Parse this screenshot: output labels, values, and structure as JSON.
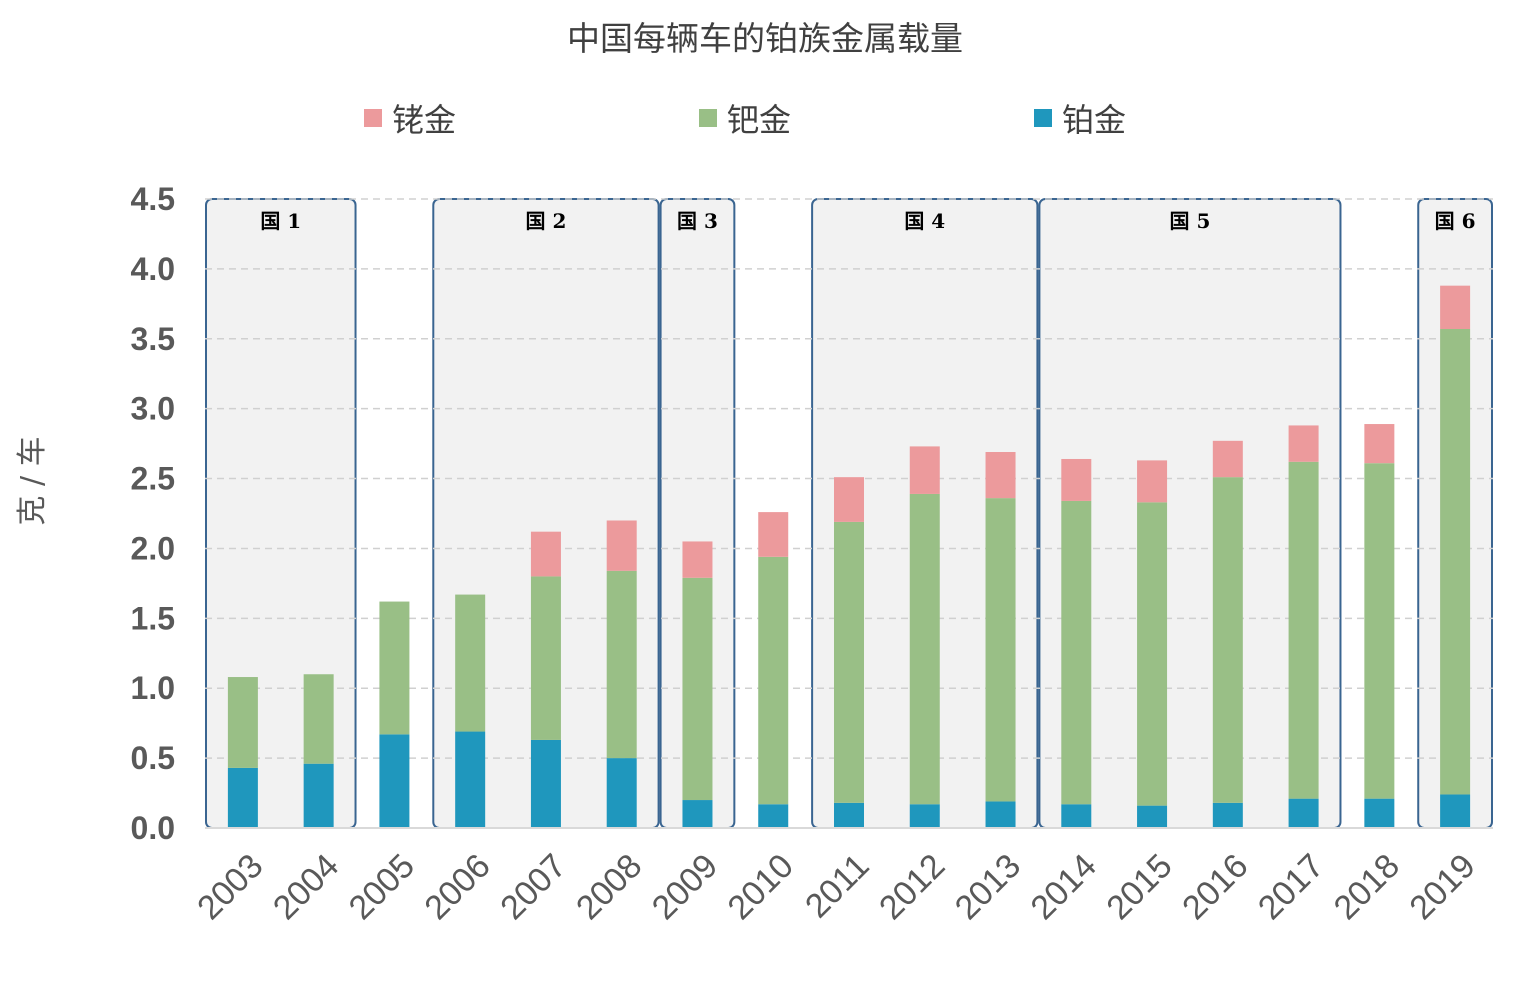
{
  "chart_data": {
    "type": "bar",
    "stacked": true,
    "title": "中国每辆车的铂族金属载量",
    "xlabel": "",
    "ylabel": "克 / 车",
    "ylim": [
      0,
      4.5
    ],
    "yticks": [
      "0.0",
      "0.5",
      "1.0",
      "1.5",
      "2.0",
      "2.5",
      "3.0",
      "3.5",
      "4.0",
      "4.5"
    ],
    "grid": true,
    "legend_position": "top",
    "categories": [
      "2003",
      "2004",
      "2005",
      "2006",
      "2007",
      "2008",
      "2009",
      "2010",
      "2011",
      "2012",
      "2013",
      "2014",
      "2015",
      "2016",
      "2017",
      "2018",
      "2019"
    ],
    "series": [
      {
        "name": "铂金",
        "color": "#1f97bd",
        "values": [
          0.43,
          0.46,
          0.67,
          0.69,
          0.63,
          0.5,
          0.2,
          0.17,
          0.18,
          0.17,
          0.19,
          0.17,
          0.16,
          0.18,
          0.21,
          0.21,
          0.24
        ]
      },
      {
        "name": "钯金",
        "color": "#99bf86",
        "values": [
          0.65,
          0.64,
          0.95,
          0.98,
          1.17,
          1.34,
          1.59,
          1.77,
          2.01,
          2.22,
          2.17,
          2.17,
          2.17,
          2.33,
          2.41,
          2.4,
          3.33
        ]
      },
      {
        "name": "铑金",
        "color": "#ec9a9c",
        "values": [
          0.0,
          0.0,
          0.0,
          0.0,
          0.32,
          0.36,
          0.26,
          0.32,
          0.32,
          0.34,
          0.33,
          0.3,
          0.3,
          0.26,
          0.26,
          0.28,
          0.31
        ]
      }
    ],
    "legend_order": [
      "铑金",
      "钯金",
      "铂金"
    ],
    "stages": [
      {
        "label": "国 1",
        "from": "2003",
        "to": "2004"
      },
      {
        "label": "国 2",
        "from": "2006",
        "to": "2008"
      },
      {
        "label": "国 3",
        "from": "2009",
        "to": "2009"
      },
      {
        "label": "国 4",
        "from": "2011",
        "to": "2013"
      },
      {
        "label": "国 5",
        "from": "2014",
        "to": "2017"
      },
      {
        "label": "国 6",
        "from": "2019",
        "to": "2019"
      }
    ]
  }
}
